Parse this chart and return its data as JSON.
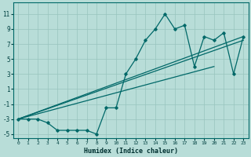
{
  "title": "",
  "xlabel": "Humidex (Indice chaleur)",
  "ylabel": "",
  "bg_color": "#b8ddd8",
  "line_color": "#006868",
  "grid_color": "#98c4be",
  "xlim": [
    -0.5,
    23.5
  ],
  "ylim": [
    -5.5,
    12.5
  ],
  "xticks": [
    0,
    1,
    2,
    3,
    4,
    5,
    6,
    7,
    8,
    9,
    10,
    11,
    12,
    13,
    14,
    15,
    16,
    17,
    18,
    19,
    20,
    21,
    22,
    23
  ],
  "yticks": [
    -5,
    -3,
    -1,
    1,
    3,
    5,
    7,
    9,
    11
  ],
  "main_x": [
    0,
    1,
    2,
    3,
    4,
    5,
    6,
    7,
    8,
    9,
    10,
    11,
    12,
    13,
    14,
    15,
    16,
    17,
    18,
    19,
    20,
    21,
    22,
    23
  ],
  "main_y": [
    -3,
    -3,
    -3,
    -3.5,
    -4.5,
    -4.5,
    -4.5,
    -4.5,
    -5,
    -1.5,
    -1.5,
    3,
    5,
    7.5,
    9,
    11,
    9,
    9.5,
    4,
    8,
    7.5,
    8.5,
    3,
    8
  ],
  "line1_x": [
    0,
    20
  ],
  "line1_y": [
    -3,
    4
  ],
  "line2_x": [
    0,
    23
  ],
  "line2_y": [
    -3,
    8
  ],
  "line3_x": [
    0,
    23
  ],
  "line3_y": [
    -3,
    7.5
  ]
}
